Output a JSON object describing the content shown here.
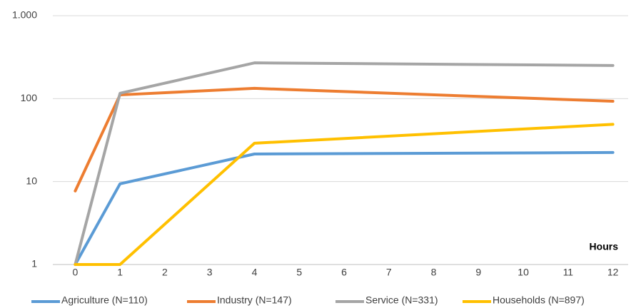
{
  "chart_data": {
    "type": "line",
    "x_label": "Hours",
    "x": [
      0,
      1,
      4,
      12
    ],
    "series": [
      {
        "name": "Agriculture (N=110)",
        "color": "#5b9bd5",
        "values": [
          1,
          9.4,
          21.5,
          22.4
        ]
      },
      {
        "name": "Industry (N=147)",
        "color": "#ed7d31",
        "values": [
          7.7,
          111,
          133,
          93
        ]
      },
      {
        "name": "Service (N=331)",
        "color": "#a5a5a5",
        "values": [
          1,
          116,
          270,
          251
        ]
      },
      {
        "name": "Households (N=897)",
        "color": "#ffc000",
        "values": [
          1,
          1,
          29,
          49
        ]
      }
    ],
    "xlim": [
      -0.5,
      12.5
    ],
    "xticks": [
      0,
      1,
      2,
      3,
      4,
      5,
      6,
      7,
      8,
      9,
      10,
      11,
      12
    ],
    "ylim": [
      1,
      1000
    ],
    "yticks": [
      1,
      10,
      100,
      {
        "value": 1000,
        "label": "1.000"
      }
    ],
    "log_y": true,
    "grid": true,
    "legend": "bottom"
  }
}
